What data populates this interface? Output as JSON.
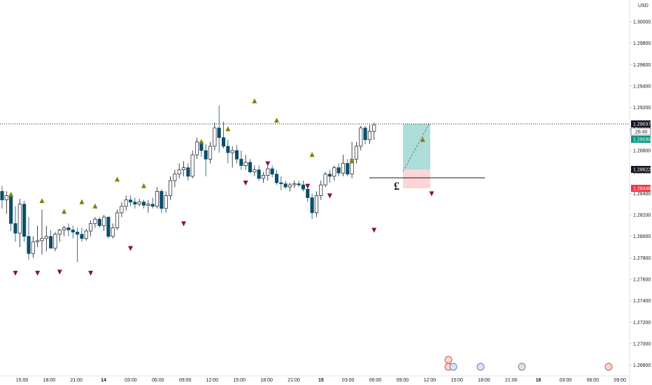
{
  "chart_data": {
    "type": "candlestick",
    "currency": "USD",
    "y_ticks": [
      "1.30000",
      "1.29800",
      "1.29600",
      "1.29400",
      "1.29200",
      "1.29000",
      "1.28800",
      "1.28600",
      "1.28400",
      "1.28200",
      "1.28000",
      "1.27800",
      "1.27600",
      "1.27400",
      "1.27200",
      "1.27000",
      "1.26800"
    ],
    "ylim": [
      1.267,
      1.3017
    ],
    "x_ticks": [
      {
        "label": "15:00",
        "bold": false
      },
      {
        "label": "18:00",
        "bold": false
      },
      {
        "label": "21:00",
        "bold": false
      },
      {
        "label": "14",
        "bold": true
      },
      {
        "label": "03:00",
        "bold": false
      },
      {
        "label": "06:00",
        "bold": false
      },
      {
        "label": "09:00",
        "bold": false
      },
      {
        "label": "12:00",
        "bold": false
      },
      {
        "label": "15:00",
        "bold": false
      },
      {
        "label": "18:00",
        "bold": false
      },
      {
        "label": "21:00",
        "bold": false
      },
      {
        "label": "15",
        "bold": true
      },
      {
        "label": "03:00",
        "bold": false
      },
      {
        "label": "06:00",
        "bold": false
      },
      {
        "label": "09:00",
        "bold": false
      },
      {
        "label": "12:00",
        "bold": false
      },
      {
        "label": "15:00",
        "bold": false
      },
      {
        "label": "18:00",
        "bold": false
      },
      {
        "label": "21:00",
        "bold": false
      },
      {
        "label": "16",
        "bold": true
      },
      {
        "label": "03:00",
        "bold": false
      },
      {
        "label": "06:00",
        "bold": false
      },
      {
        "label": "09:00",
        "bold": false
      }
    ],
    "price_labels": {
      "last": "1.29037",
      "countdown": "26:40",
      "tp": "1.29030",
      "entry": "1.28622",
      "sl": "1.28446"
    },
    "grid": false,
    "candles": [
      [
        1.2842,
        1.2847,
        1.2826,
        1.2834
      ],
      [
        1.2834,
        1.2842,
        1.2821,
        1.2838
      ],
      [
        1.2838,
        1.284,
        1.2805,
        1.2812
      ],
      [
        1.2812,
        1.2828,
        1.2795,
        1.2803
      ],
      [
        1.2803,
        1.2835,
        1.279,
        1.283
      ],
      [
        1.283,
        1.2833,
        1.2795,
        1.28
      ],
      [
        1.28,
        1.2818,
        1.2778,
        1.2784
      ],
      [
        1.2784,
        1.28,
        1.278,
        1.2795
      ],
      [
        1.2795,
        1.281,
        1.279,
        1.2796
      ],
      [
        1.2796,
        1.2825,
        1.2783,
        1.2798
      ],
      [
        1.2798,
        1.281,
        1.2786,
        1.28
      ],
      [
        1.28,
        1.2806,
        1.2789,
        1.2789
      ],
      [
        1.2789,
        1.2804,
        1.2786,
        1.2802
      ],
      [
        1.2802,
        1.2807,
        1.2795,
        1.2806
      ],
      [
        1.2806,
        1.281,
        1.28,
        1.2808
      ],
      [
        1.2808,
        1.2812,
        1.28,
        1.2806
      ],
      [
        1.2806,
        1.281,
        1.2798,
        1.2804
      ],
      [
        1.2804,
        1.2808,
        1.2776,
        1.2802
      ],
      [
        1.2802,
        1.2808,
        1.2795,
        1.2798
      ],
      [
        1.2798,
        1.2807,
        1.2796,
        1.2805
      ],
      [
        1.2805,
        1.2815,
        1.28,
        1.2812
      ],
      [
        1.2812,
        1.2818,
        1.2808,
        1.2816
      ],
      [
        1.2816,
        1.2818,
        1.2808,
        1.281
      ],
      [
        1.281,
        1.282,
        1.2805,
        1.2818
      ],
      [
        1.2818,
        1.2818,
        1.2798,
        1.28
      ],
      [
        1.28,
        1.2812,
        1.2798,
        1.2808
      ],
      [
        1.2808,
        1.2825,
        1.2806,
        1.2822
      ],
      [
        1.2822,
        1.2832,
        1.2818,
        1.2828
      ],
      [
        1.2828,
        1.2838,
        1.2824,
        1.2834
      ],
      [
        1.2834,
        1.2838,
        1.2828,
        1.2832
      ],
      [
        1.2832,
        1.2836,
        1.2826,
        1.283
      ],
      [
        1.283,
        1.2835,
        1.2828,
        1.2832
      ],
      [
        1.2832,
        1.2834,
        1.2826,
        1.2829
      ],
      [
        1.2829,
        1.2834,
        1.2822,
        1.283
      ],
      [
        1.283,
        1.2836,
        1.2826,
        1.2828
      ],
      [
        1.2828,
        1.2846,
        1.2826,
        1.2842
      ],
      [
        1.2842,
        1.2844,
        1.2822,
        1.2826
      ],
      [
        1.2826,
        1.2842,
        1.2822,
        1.2838
      ],
      [
        1.2838,
        1.2856,
        1.2834,
        1.2852
      ],
      [
        1.2852,
        1.2862,
        1.2846,
        1.2858
      ],
      [
        1.2858,
        1.2868,
        1.2854,
        1.2862
      ],
      [
        1.2862,
        1.287,
        1.2856,
        1.2864
      ],
      [
        1.2864,
        1.2868,
        1.2852,
        1.2856
      ],
      [
        1.2856,
        1.288,
        1.2854,
        1.2876
      ],
      [
        1.2876,
        1.2892,
        1.2872,
        1.2888
      ],
      [
        1.2888,
        1.289,
        1.2874,
        1.288
      ],
      [
        1.288,
        1.2886,
        1.2856,
        1.2872
      ],
      [
        1.2872,
        1.2888,
        1.2868,
        1.2884
      ],
      [
        1.2884,
        1.2906,
        1.288,
        1.2901
      ],
      [
        1.2901,
        1.2922,
        1.2878,
        1.2892
      ],
      [
        1.2892,
        1.2907,
        1.2882,
        1.2884
      ],
      [
        1.2884,
        1.289,
        1.2868,
        1.2878
      ],
      [
        1.2878,
        1.2884,
        1.2864,
        1.288
      ],
      [
        1.288,
        1.2885,
        1.2868,
        1.2872
      ],
      [
        1.2872,
        1.288,
        1.2862,
        1.2866
      ],
      [
        1.2866,
        1.2876,
        1.2862,
        1.2869
      ],
      [
        1.2869,
        1.2872,
        1.2859,
        1.286
      ],
      [
        1.286,
        1.2866,
        1.2856,
        1.2862
      ],
      [
        1.2862,
        1.2866,
        1.2852,
        1.2854
      ],
      [
        1.2854,
        1.286,
        1.285,
        1.2857
      ],
      [
        1.2857,
        1.2866,
        1.2852,
        1.2863
      ],
      [
        1.2863,
        1.2866,
        1.2855,
        1.2858
      ],
      [
        1.2858,
        1.2862,
        1.2848,
        1.285
      ],
      [
        1.285,
        1.2856,
        1.2843,
        1.2849
      ],
      [
        1.2849,
        1.2852,
        1.2844,
        1.2846
      ],
      [
        1.2846,
        1.285,
        1.2842,
        1.2848
      ],
      [
        1.2848,
        1.2852,
        1.2845,
        1.2849
      ],
      [
        1.2849,
        1.2852,
        1.2846,
        1.2848
      ],
      [
        1.2848,
        1.2852,
        1.2842,
        1.2844
      ],
      [
        1.2844,
        1.2848,
        1.2832,
        1.2836
      ],
      [
        1.2836,
        1.284,
        1.2816,
        1.2822
      ],
      [
        1.2822,
        1.2842,
        1.2818,
        1.2838
      ],
      [
        1.2838,
        1.2852,
        1.2834,
        1.2848
      ],
      [
        1.2848,
        1.286,
        1.2846,
        1.2858
      ],
      [
        1.2858,
        1.2862,
        1.285,
        1.2856
      ],
      [
        1.2856,
        1.2866,
        1.2852,
        1.2864
      ],
      [
        1.2864,
        1.2868,
        1.2856,
        1.2859
      ],
      [
        1.2859,
        1.2876,
        1.2856,
        1.2868
      ],
      [
        1.2868,
        1.2872,
        1.2856,
        1.2858
      ],
      [
        1.2858,
        1.2888,
        1.2854,
        1.2872
      ],
      [
        1.2872,
        1.2888,
        1.2868,
        1.2884
      ],
      [
        1.2884,
        1.2903,
        1.288,
        1.2901
      ],
      [
        1.2901,
        1.2903,
        1.2886,
        1.289
      ],
      [
        1.289,
        1.2904,
        1.2886,
        1.2898
      ],
      [
        1.2898,
        1.2906,
        1.289,
        1.2904
      ]
    ]
  },
  "markers": {
    "up": [
      [
        2,
        1.2839
      ],
      [
        9,
        1.2833
      ],
      [
        14,
        1.2823
      ],
      [
        18,
        1.2832
      ],
      [
        21,
        1.2828
      ],
      [
        26,
        1.2853
      ],
      [
        32,
        1.2847
      ],
      [
        45,
        1.2888
      ],
      [
        51,
        1.29
      ],
      [
        57,
        1.2926
      ],
      [
        62,
        1.2908
      ],
      [
        70,
        1.2876
      ],
      [
        79,
        1.287
      ],
      [
        95,
        1.289
      ]
    ],
    "down": [
      [
        3,
        1.2766
      ],
      [
        8,
        1.2766
      ],
      [
        13,
        1.2767
      ],
      [
        20,
        1.2766
      ],
      [
        29,
        1.2789
      ],
      [
        41,
        1.2812
      ],
      [
        55,
        1.285
      ],
      [
        60,
        1.2868
      ],
      [
        69,
        1.2847
      ],
      [
        74,
        1.2838
      ],
      [
        84,
        1.2806
      ],
      [
        97,
        1.284
      ]
    ]
  },
  "events_row": {
    "flag_icons": [
      "gb-flag-icon",
      "us-flag-icon",
      "us-flag-icon",
      "us-flag-icon",
      "us-flag-icon"
    ]
  }
}
